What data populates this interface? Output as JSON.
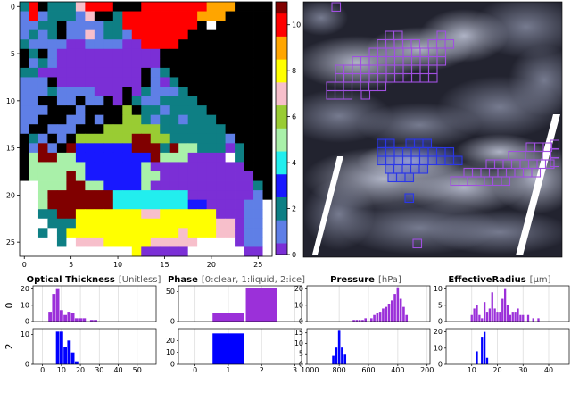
{
  "chart_data": [
    {
      "type": "heatmap",
      "name_hint": "cloud-cluster-map",
      "x_ticks": [
        "0",
        "5",
        "10",
        "15",
        "20",
        "25"
      ],
      "y_ticks": [
        "0",
        "5",
        "10",
        "15",
        "20",
        "25"
      ],
      "xlim": [
        0,
        27
      ],
      "ylim": [
        0,
        27
      ],
      "colorbar": {
        "ticks": [
          "0",
          "2",
          "4",
          "6",
          "8",
          "10"
        ],
        "range": [
          0,
          11
        ],
        "colors": [
          "#7b2fd6",
          "#5f7fe6",
          "#0e7f84",
          "#1818ff",
          "#22eeee",
          "#a9f0a9",
          "#99cc33",
          "#f7bfcb",
          "#ffff00",
          "#ffa500",
          "#ff0000",
          "#800000"
        ]
      }
    },
    {
      "type": "image",
      "name_hint": "satellite-image",
      "boxes_purple": 3,
      "boxes_blue": 1
    },
    {
      "type": "bar",
      "titles": [
        {
          "main": "Optical Thickness",
          "unit": "[Unitless]"
        },
        {
          "main": "Phase",
          "unit": "[0:clear, 1:liquid, 2:ice]"
        },
        {
          "main": "Pressure",
          "unit": "[hPa]"
        },
        {
          "main": "EffectiveRadius",
          "unit": "[μm]"
        }
      ],
      "row_labels": [
        "0",
        "2"
      ],
      "panels": [
        {
          "row": 0,
          "col": 0,
          "color": "#9b30d9",
          "xlim": [
            -5,
            60
          ],
          "ylim": [
            0,
            22
          ],
          "yticks": [
            "0",
            "10",
            "20"
          ],
          "xticks": [],
          "bars": [
            {
              "x": 4,
              "y": 6
            },
            {
              "x": 6,
              "y": 17
            },
            {
              "x": 8,
              "y": 20
            },
            {
              "x": 10,
              "y": 7
            },
            {
              "x": 12,
              "y": 4
            },
            {
              "x": 14,
              "y": 6
            },
            {
              "x": 16,
              "y": 5
            },
            {
              "x": 18,
              "y": 2
            },
            {
              "x": 20,
              "y": 2
            },
            {
              "x": 22,
              "y": 2
            },
            {
              "x": 26,
              "y": 1
            },
            {
              "x": 28,
              "y": 1
            }
          ],
          "barw": 1.8
        },
        {
          "row": 1,
          "col": 0,
          "color": "#0000ff",
          "xlim": [
            -5,
            60
          ],
          "ylim": [
            0,
            12
          ],
          "yticks": [
            "0",
            "10"
          ],
          "xticks": [
            "0",
            "10",
            "20",
            "30",
            "40",
            "50"
          ],
          "bars": [
            {
              "x": 8,
              "y": 11
            },
            {
              "x": 10,
              "y": 11
            },
            {
              "x": 12,
              "y": 6
            },
            {
              "x": 14,
              "y": 8
            },
            {
              "x": 16,
              "y": 4
            },
            {
              "x": 18,
              "y": 1
            }
          ],
          "barw": 1.8
        },
        {
          "row": 0,
          "col": 1,
          "color": "#9b30d9",
          "xlim": [
            -0.5,
            3.2
          ],
          "ylim": [
            0,
            60
          ],
          "yticks": [
            "0",
            "50"
          ],
          "xticks": [],
          "bars": [
            {
              "x": 1.0,
              "y": 15
            },
            {
              "x": 2.0,
              "y": 57
            }
          ],
          "barw": 0.95
        },
        {
          "row": 1,
          "col": 1,
          "color": "#0000ff",
          "xlim": [
            -0.5,
            3.2
          ],
          "ylim": [
            0,
            30
          ],
          "yticks": [
            "0",
            "10",
            "20"
          ],
          "xticks": [
            "0",
            "1",
            "2",
            "3"
          ],
          "bars": [
            {
              "x": 1.0,
              "y": 26
            }
          ],
          "barw": 0.95
        },
        {
          "row": 0,
          "col": 2,
          "color": "#9b30d9",
          "xlim": [
            1020,
            180
          ],
          "ylim": [
            0,
            22
          ],
          "yticks": [
            "0",
            "10",
            "20"
          ],
          "xticks": [],
          "bars": [
            {
              "x": 700,
              "y": 1
            },
            {
              "x": 680,
              "y": 1
            },
            {
              "x": 660,
              "y": 1
            },
            {
              "x": 640,
              "y": 1
            },
            {
              "x": 620,
              "y": 2
            },
            {
              "x": 580,
              "y": 2
            },
            {
              "x": 560,
              "y": 4
            },
            {
              "x": 540,
              "y": 5
            },
            {
              "x": 520,
              "y": 6
            },
            {
              "x": 500,
              "y": 8
            },
            {
              "x": 480,
              "y": 9
            },
            {
              "x": 460,
              "y": 11
            },
            {
              "x": 440,
              "y": 13
            },
            {
              "x": 420,
              "y": 17
            },
            {
              "x": 400,
              "y": 21
            },
            {
              "x": 380,
              "y": 14
            },
            {
              "x": 360,
              "y": 9
            },
            {
              "x": 340,
              "y": 4
            }
          ],
          "barw": 16
        },
        {
          "row": 1,
          "col": 2,
          "color": "#0000ff",
          "xlim": [
            1020,
            180
          ],
          "ylim": [
            0,
            17
          ],
          "yticks": [
            "0",
            "5",
            "10",
            "15"
          ],
          "xticks": [
            "1000",
            "800",
            "600",
            "400",
            "200"
          ],
          "bars": [
            {
              "x": 840,
              "y": 4
            },
            {
              "x": 820,
              "y": 8
            },
            {
              "x": 800,
              "y": 16
            },
            {
              "x": 780,
              "y": 8
            },
            {
              "x": 760,
              "y": 5
            }
          ],
          "barw": 16
        },
        {
          "row": 0,
          "col": 3,
          "color": "#9b30d9",
          "xlim": [
            0,
            48
          ],
          "ylim": [
            0,
            11
          ],
          "yticks": [
            "0",
            "5",
            "10"
          ],
          "xticks": [],
          "bars": [
            {
              "x": 10,
              "y": 2
            },
            {
              "x": 11,
              "y": 4
            },
            {
              "x": 12,
              "y": 5
            },
            {
              "x": 13,
              "y": 2
            },
            {
              "x": 14,
              "y": 1
            },
            {
              "x": 15,
              "y": 6
            },
            {
              "x": 16,
              "y": 3
            },
            {
              "x": 17,
              "y": 4
            },
            {
              "x": 18,
              "y": 9
            },
            {
              "x": 19,
              "y": 4
            },
            {
              "x": 20,
              "y": 3
            },
            {
              "x": 21,
              "y": 3
            },
            {
              "x": 22,
              "y": 7
            },
            {
              "x": 23,
              "y": 10
            },
            {
              "x": 24,
              "y": 5
            },
            {
              "x": 25,
              "y": 2
            },
            {
              "x": 26,
              "y": 3
            },
            {
              "x": 27,
              "y": 3
            },
            {
              "x": 28,
              "y": 4
            },
            {
              "x": 29,
              "y": 2
            },
            {
              "x": 30,
              "y": 2
            },
            {
              "x": 32,
              "y": 2
            },
            {
              "x": 34,
              "y": 1
            },
            {
              "x": 36,
              "y": 1
            }
          ],
          "barw": 0.8
        },
        {
          "row": 1,
          "col": 3,
          "color": "#0000ff",
          "xlim": [
            0,
            48
          ],
          "ylim": [
            0,
            22
          ],
          "yticks": [
            "0",
            "10",
            "20"
          ],
          "xticks": [
            "10",
            "20",
            "30",
            "40"
          ],
          "bars": [
            {
              "x": 12,
              "y": 8
            },
            {
              "x": 14,
              "y": 17
            },
            {
              "x": 15,
              "y": 20
            },
            {
              "x": 16,
              "y": 4
            }
          ],
          "barw": 0.8
        }
      ]
    }
  ]
}
